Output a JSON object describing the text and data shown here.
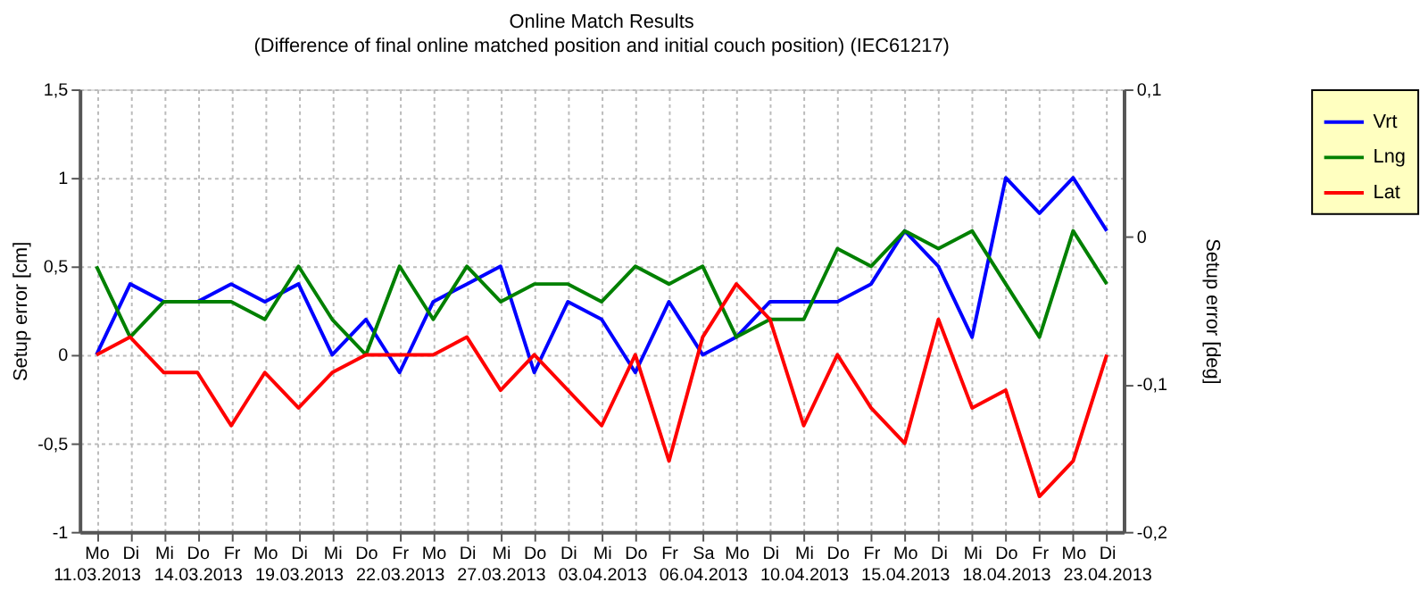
{
  "chart_data": {
    "type": "line",
    "title": "Online Match Results",
    "subtitle": "(Difference of final online matched position and initial couch position) (IEC61217)",
    "categories": [
      "Mo\n11.03.2013",
      "Di",
      "Mi",
      "Do\n14.03.2013",
      "Fr",
      "Mo",
      "Di\n19.03.2013",
      "Mi",
      "Do",
      "Fr\n22.03.2013",
      "Mo",
      "Di",
      "Mi\n27.03.2013",
      "Do",
      "Di",
      "Mi\n03.04.2013",
      "Do",
      "Fr",
      "Sa\n06.04.2013",
      "Mo",
      "Di",
      "Mi\n10.04.2013",
      "Do",
      "Fr",
      "Mo\n15.04.2013",
      "Di",
      "Mi",
      "Do\n18.04.2013",
      "Fr",
      "Mo",
      "Di\n23.04.2013"
    ],
    "series": [
      {
        "name": "Vrt",
        "color": "#0000ff",
        "values": [
          0,
          0.4,
          0.3,
          0.3,
          0.4,
          0.3,
          0.4,
          0,
          0.2,
          -0.1,
          0.3,
          0.4,
          0.5,
          -0.1,
          0.3,
          0.2,
          -0.1,
          0.3,
          0,
          0.1,
          0.3,
          0.3,
          0.3,
          0.4,
          0.7,
          0.5,
          0.1,
          1.0,
          0.8,
          1.0,
          0.7
        ]
      },
      {
        "name": "Lng",
        "color": "#008000",
        "values": [
          0.5,
          0.1,
          0.3,
          0.3,
          0.3,
          0.2,
          0.5,
          0.2,
          0,
          0.5,
          0.2,
          0.5,
          0.3,
          0.4,
          0.4,
          0.3,
          0.5,
          0.4,
          0.5,
          0.1,
          0.2,
          0.2,
          0.6,
          0.5,
          0.7,
          0.6,
          0.7,
          0.4,
          0.1,
          0.7,
          0.4
        ]
      },
      {
        "name": "Lat",
        "color": "#ff0000",
        "values": [
          0,
          0.1,
          -0.1,
          -0.1,
          -0.4,
          -0.1,
          -0.3,
          -0.1,
          0,
          0,
          0,
          0.1,
          -0.2,
          0,
          -0.2,
          -0.4,
          0,
          -0.6,
          0.1,
          0.4,
          0.2,
          -0.4,
          0,
          -0.3,
          -0.5,
          0.2,
          -0.3,
          -0.2,
          -0.8,
          -0.6,
          0
        ]
      }
    ],
    "ylabel": "Setup error [cm]",
    "y2label": "Setup error [deg]",
    "ylim": [
      -1,
      1.5
    ],
    "yticks": [
      {
        "value": -1,
        "label": "-1"
      },
      {
        "value": -0.5,
        "label": "-0,5"
      },
      {
        "value": 0,
        "label": "0"
      },
      {
        "value": 0.5,
        "label": "0,5"
      },
      {
        "value": 1,
        "label": "1"
      },
      {
        "value": 1.5,
        "label": "1,5"
      }
    ],
    "y2lim": [
      -0.2,
      0.1
    ],
    "y2ticks": [
      {
        "value": -0.2,
        "label": "-0,2"
      },
      {
        "value": -0.1,
        "label": "-0,1"
      },
      {
        "value": 0,
        "label": "0"
      },
      {
        "value": 0.1,
        "label": "0,1"
      }
    ],
    "grid": true,
    "legend": "right",
    "marker": "none",
    "line_style": "solid"
  }
}
